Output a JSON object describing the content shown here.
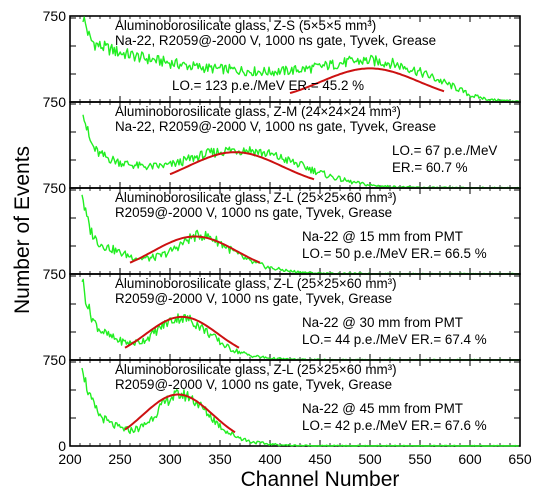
{
  "chart_data": {
    "type": "line",
    "xlabel": "Channel Number",
    "ylabel": "Number of Events",
    "xlim": [
      200,
      650
    ],
    "x_ticks": [
      200,
      250,
      300,
      350,
      400,
      450,
      500,
      550,
      600,
      650
    ],
    "ylim": [
      0,
      750
    ],
    "y_tick_labels": [
      "750",
      "750",
      "750",
      "750",
      "750",
      "0"
    ],
    "grid": false,
    "colors": {
      "data": "#22ee22",
      "fit": "#cc1111",
      "axes": "#000000"
    },
    "panels": [
      {
        "title": "Aluminoborosilicate glass, Z-S (5×5×5 mm³)",
        "setup": "Na-22, R2059@-2000 V, 1000 ns gate, Tyvek, Grease",
        "info_line1": "",
        "info_line2": "LO.= 123 p.e./MeV    ER.= 45.2 %",
        "spectrum": {
          "x": [
            213,
            216,
            220,
            225,
            230,
            240,
            250,
            260,
            275,
            290,
            300,
            320,
            340,
            360,
            380,
            400,
            420,
            440,
            460,
            480,
            500,
            520,
            540,
            560,
            575,
            590,
            600,
            620,
            650
          ],
          "y": [
            760,
            680,
            560,
            520,
            500,
            470,
            440,
            420,
            390,
            365,
            350,
            320,
            300,
            290,
            275,
            270,
            280,
            300,
            330,
            360,
            370,
            350,
            300,
            230,
            170,
            110,
            60,
            20,
            5
          ]
        },
        "fit": {
          "mean": 500,
          "sigma": 49,
          "amplitude": 300,
          "x_range": [
            420,
            575
          ]
        }
      },
      {
        "title": "Aluminoborosilicate glass, Z-M (24×24×24 mm³)",
        "setup": "Na-22, R2059@-2000 V, 1000 ns gate, Tyvek, Grease",
        "info_line1": "LO.= 67 p.e./MeV",
        "info_line2": "ER.= 60.7 %",
        "spectrum": {
          "x": [
            213,
            216,
            220,
            225,
            230,
            240,
            250,
            260,
            270,
            280,
            290,
            300,
            310,
            320,
            340,
            360,
            380,
            400,
            420,
            440,
            460,
            480,
            500,
            520,
            540,
            560,
            600,
            650
          ],
          "y": [
            720,
            560,
            420,
            340,
            300,
            260,
            230,
            210,
            195,
            190,
            195,
            205,
            230,
            260,
            310,
            340,
            340,
            300,
            240,
            170,
            105,
            55,
            25,
            12,
            6,
            3,
            1,
            0
          ]
        },
        "fit": {
          "mean": 365,
          "sigma": 47,
          "amplitude": 320,
          "x_range": [
            300,
            445
          ]
        }
      },
      {
        "title": "Aluminoborosilicate glass, Z-L (25×25×60 mm³)",
        "setup": "R2059@-2000 V, 1000 ns gate, Tyvek, Grease",
        "info_line1": "Na-22 @ 15 mm from PMT",
        "info_line2": "LO.= 50 p.e./MeV    ER.= 66.5 %",
        "spectrum": {
          "x": [
            212,
            215,
            220,
            225,
            230,
            240,
            250,
            260,
            270,
            280,
            290,
            300,
            310,
            320,
            330,
            340,
            350,
            360,
            370,
            380,
            400,
            420,
            440,
            460,
            500,
            550,
            650
          ],
          "y": [
            740,
            560,
            400,
            320,
            270,
            230,
            190,
            160,
            140,
            140,
            160,
            200,
            260,
            320,
            350,
            330,
            280,
            220,
            160,
            110,
            55,
            25,
            10,
            5,
            2,
            0,
            0
          ]
        },
        "fit": {
          "mean": 325,
          "sigma": 42,
          "amplitude": 335,
          "x_range": [
            260,
            390
          ]
        }
      },
      {
        "title": "Aluminoborosilicate glass, Z-L (25×25×60 mm³)",
        "setup": "R2059@-2000 V, 1000 ns gate, Tyvek, Grease",
        "info_line1": "Na-22 @ 30 mm from PMT",
        "info_line2": "LO.= 44 p.e./MeV    ER.= 67.4 %",
        "spectrum": {
          "x": [
            212,
            215,
            220,
            225,
            230,
            240,
            250,
            260,
            270,
            280,
            290,
            300,
            310,
            320,
            330,
            340,
            350,
            360,
            380,
            400,
            420,
            440,
            460,
            500,
            550,
            650
          ],
          "y": [
            740,
            580,
            420,
            330,
            270,
            210,
            170,
            150,
            160,
            210,
            290,
            350,
            380,
            360,
            300,
            230,
            160,
            100,
            40,
            15,
            6,
            3,
            1,
            0,
            0,
            0
          ]
        },
        "fit": {
          "mean": 312,
          "sigma": 36,
          "amplitude": 385,
          "x_range": [
            255,
            370
          ]
        }
      },
      {
        "title": "Aluminoborosilicate glass, Z-L (25×25×60 mm³)",
        "setup": "R2059@-2000 V, 1000 ns gate, Tyvek, Grease",
        "info_line1": "Na-22 @ 45 mm from PMT",
        "info_line2": "LO.= 42 p.e./MeV    ER.= 67.6 %",
        "spectrum": {
          "x": [
            212,
            215,
            220,
            225,
            230,
            240,
            250,
            260,
            270,
            280,
            290,
            300,
            310,
            320,
            330,
            340,
            350,
            360,
            380,
            400,
            420,
            440,
            460,
            500,
            550,
            650
          ],
          "y": [
            760,
            590,
            430,
            340,
            270,
            200,
            160,
            140,
            160,
            230,
            340,
            430,
            460,
            440,
            360,
            270,
            180,
            110,
            40,
            15,
            6,
            3,
            1,
            0,
            0,
            0
          ]
        },
        "fit": {
          "mean": 308,
          "sigma": 35,
          "amplitude": 460,
          "x_range": [
            255,
            365
          ]
        }
      }
    ]
  }
}
